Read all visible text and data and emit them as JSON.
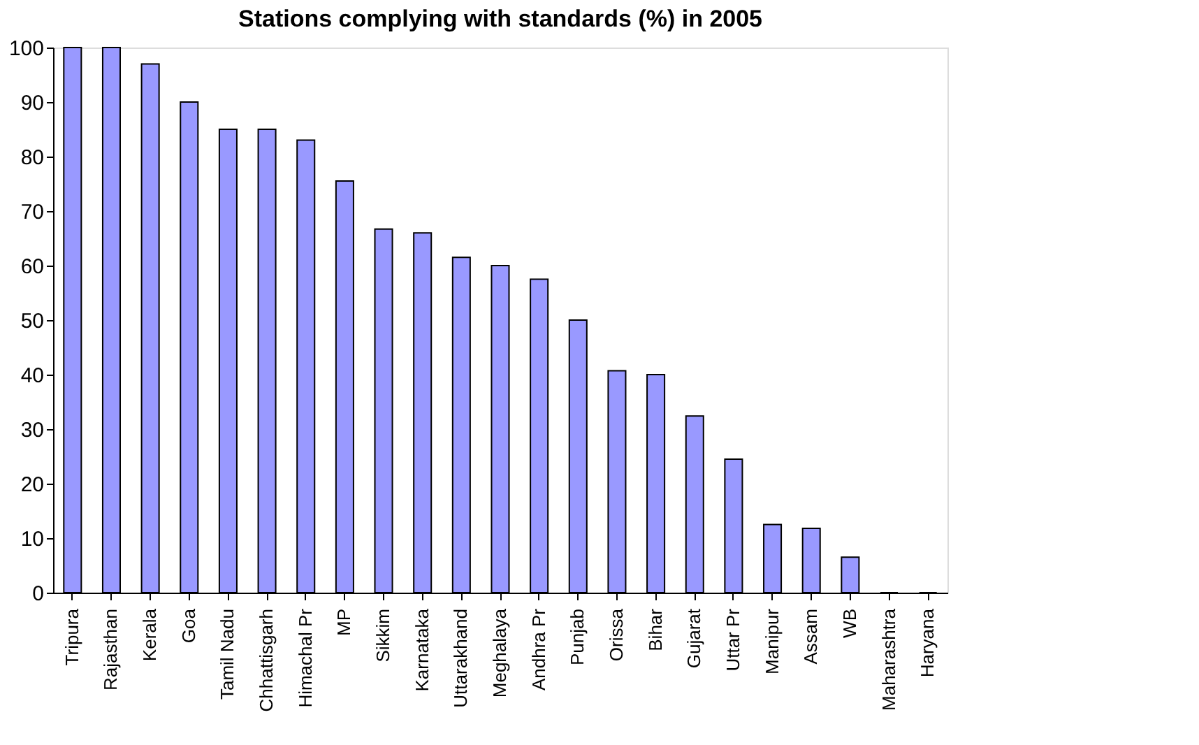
{
  "chart_data": {
    "type": "bar",
    "title": "Stations complying with standards (%) in 2005",
    "categories": [
      "Tripura",
      "Rajasthan",
      "Kerala",
      "Goa",
      "Tamil Nadu",
      "Chhattisgarh",
      "Himachal Pr",
      "MP",
      "Sikkim",
      "Karnataka",
      "Uttarakhand",
      "Meghalaya",
      "Andhra Pr",
      "Punjab",
      "Orissa",
      "Bihar",
      "Gujarat",
      "Uttar Pr",
      "Manipur",
      "Assam",
      "WB",
      "Maharashtra",
      "Haryana"
    ],
    "values": [
      100,
      100,
      97,
      90,
      85,
      85,
      83,
      75.5,
      66.7,
      66,
      61.5,
      60,
      57.5,
      50,
      40.7,
      40,
      32.4,
      24.5,
      12.5,
      11.8,
      6.5,
      0,
      0
    ],
    "color": "#9999ff",
    "ylim": [
      0,
      100
    ],
    "yticks": [
      0,
      10,
      20,
      30,
      40,
      50,
      60,
      70,
      80,
      90,
      100
    ],
    "grid": false
  }
}
